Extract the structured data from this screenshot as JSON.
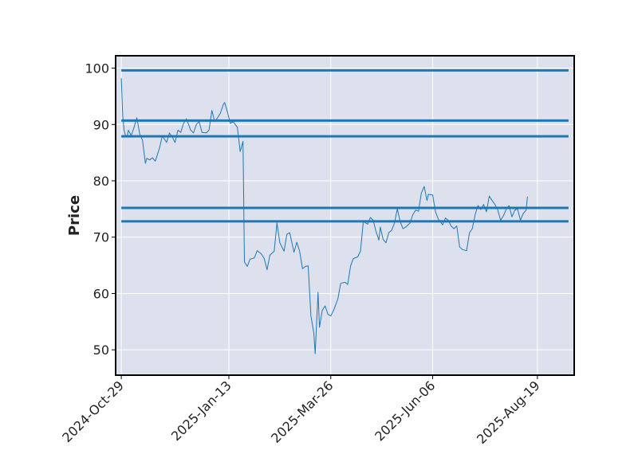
{
  "chart_data": {
    "type": "line",
    "title": "",
    "xlabel": "",
    "ylabel": "Price",
    "ylim": [
      45.5,
      102.2
    ],
    "xlim": [
      "2024-10-25",
      "2025-09-14"
    ],
    "grid": true,
    "y_ticks": [
      50,
      60,
      70,
      80,
      90,
      100
    ],
    "x_ticks": [
      "2024-10-29",
      "2025-01-13",
      "2025-03-26",
      "2025-06-06",
      "2025-08-19"
    ],
    "x_tick_labels": [
      "2024-Oct-29",
      "2025-Jan-13",
      "2025-Mar-26",
      "2025-Jun-06",
      "2025-Aug-19"
    ],
    "colors": {
      "background": "#dce1ed",
      "line": "#1f77b4",
      "hline": "#1f77b4",
      "grid": "#ffffff"
    },
    "hlines": {
      "values": [
        99.6,
        90.7,
        87.9,
        75.2,
        72.8
      ],
      "xmin": "2024-10-29",
      "xmax": "2025-09-10"
    },
    "series": [
      {
        "points": [
          [
            "2024-10-29",
            98.2
          ],
          [
            "2024-10-30",
            91.5
          ],
          [
            "2024-10-31",
            89.0
          ],
          [
            "2024-11-01",
            88.0
          ],
          [
            "2024-11-02",
            87.8
          ],
          [
            "2024-11-03",
            89.0
          ],
          [
            "2024-11-05",
            88.0
          ],
          [
            "2024-11-07",
            89.5
          ],
          [
            "2024-11-09",
            91.2
          ],
          [
            "2024-11-11",
            88.3
          ],
          [
            "2024-11-13",
            87.2
          ],
          [
            "2024-11-15",
            83.1
          ],
          [
            "2024-11-16",
            84.0
          ],
          [
            "2024-11-18",
            83.7
          ],
          [
            "2024-11-20",
            84.1
          ],
          [
            "2024-11-22",
            83.5
          ],
          [
            "2024-11-25",
            85.8
          ],
          [
            "2024-11-27",
            88.0
          ],
          [
            "2024-11-30",
            86.8
          ],
          [
            "2024-12-02",
            88.5
          ],
          [
            "2024-12-04",
            87.8
          ],
          [
            "2024-12-06",
            86.8
          ],
          [
            "2024-12-08",
            89.0
          ],
          [
            "2024-12-10",
            88.6
          ],
          [
            "2024-12-12",
            90.2
          ],
          [
            "2024-12-14",
            91.0
          ],
          [
            "2024-12-17",
            89.0
          ],
          [
            "2024-12-19",
            88.5
          ],
          [
            "2024-12-21",
            90.0
          ],
          [
            "2024-12-23",
            90.5
          ],
          [
            "2024-12-25",
            88.6
          ],
          [
            "2024-12-28",
            88.5
          ],
          [
            "2024-12-30",
            89.0
          ],
          [
            "2025-01-01",
            92.5
          ],
          [
            "2025-01-03",
            90.5
          ],
          [
            "2025-01-05",
            91.2
          ],
          [
            "2025-01-07",
            92.0
          ],
          [
            "2025-01-09",
            93.5
          ],
          [
            "2025-01-10",
            93.9
          ],
          [
            "2025-01-12",
            92.2
          ],
          [
            "2025-01-14",
            90.2
          ],
          [
            "2025-01-16",
            90.5
          ],
          [
            "2025-01-19",
            89.5
          ],
          [
            "2025-01-21",
            85.2
          ],
          [
            "2025-01-23",
            87.0
          ],
          [
            "2025-01-24",
            65.6
          ],
          [
            "2025-01-26",
            64.8
          ],
          [
            "2025-01-28",
            66.1
          ],
          [
            "2025-01-31",
            66.3
          ],
          [
            "2025-02-02",
            67.6
          ],
          [
            "2025-02-05",
            67.0
          ],
          [
            "2025-02-07",
            66.2
          ],
          [
            "2025-02-09",
            64.2
          ],
          [
            "2025-02-11",
            66.8
          ],
          [
            "2025-02-14",
            67.5
          ],
          [
            "2025-02-16",
            72.5
          ],
          [
            "2025-02-18",
            69.0
          ],
          [
            "2025-02-21",
            67.5
          ],
          [
            "2025-02-23",
            70.5
          ],
          [
            "2025-02-25",
            70.8
          ],
          [
            "2025-02-28",
            67.3
          ],
          [
            "2025-03-02",
            69.1
          ],
          [
            "2025-03-04",
            67.5
          ],
          [
            "2025-03-06",
            64.4
          ],
          [
            "2025-03-08",
            64.8
          ],
          [
            "2025-03-10",
            64.9
          ],
          [
            "2025-03-12",
            56.0
          ],
          [
            "2025-03-14",
            53.0
          ],
          [
            "2025-03-15",
            49.3
          ],
          [
            "2025-03-17",
            60.2
          ],
          [
            "2025-03-18",
            54.0
          ],
          [
            "2025-03-20",
            57.0
          ],
          [
            "2025-03-22",
            57.8
          ],
          [
            "2025-03-24",
            56.3
          ],
          [
            "2025-03-26",
            56.0
          ],
          [
            "2025-03-28",
            57.0
          ],
          [
            "2025-03-31",
            59.0
          ],
          [
            "2025-04-02",
            61.8
          ],
          [
            "2025-04-05",
            62.0
          ],
          [
            "2025-04-07",
            61.6
          ],
          [
            "2025-04-09",
            64.9
          ],
          [
            "2025-04-11",
            66.2
          ],
          [
            "2025-04-14",
            66.5
          ],
          [
            "2025-04-16",
            67.5
          ],
          [
            "2025-04-18",
            72.8
          ],
          [
            "2025-04-21",
            72.3
          ],
          [
            "2025-04-23",
            73.5
          ],
          [
            "2025-04-25",
            73.0
          ],
          [
            "2025-04-27",
            71.0
          ],
          [
            "2025-04-29",
            69.5
          ],
          [
            "2025-04-30",
            71.8
          ],
          [
            "2025-05-02",
            69.6
          ],
          [
            "2025-05-04",
            69.0
          ],
          [
            "2025-05-06",
            70.8
          ],
          [
            "2025-05-08",
            71.2
          ],
          [
            "2025-05-10",
            72.5
          ],
          [
            "2025-05-12",
            75.0
          ],
          [
            "2025-05-14",
            72.8
          ],
          [
            "2025-05-16",
            71.5
          ],
          [
            "2025-05-18",
            71.8
          ],
          [
            "2025-05-21",
            72.5
          ],
          [
            "2025-05-23",
            74.0
          ],
          [
            "2025-05-25",
            74.8
          ],
          [
            "2025-05-27",
            74.6
          ],
          [
            "2025-05-29",
            77.8
          ],
          [
            "2025-05-31",
            79.0
          ],
          [
            "2025-06-02",
            76.5
          ],
          [
            "2025-06-03",
            77.6
          ],
          [
            "2025-06-06",
            77.5
          ],
          [
            "2025-06-08",
            74.5
          ],
          [
            "2025-06-10",
            73.2
          ],
          [
            "2025-06-13",
            72.2
          ],
          [
            "2025-06-15",
            73.4
          ],
          [
            "2025-06-17",
            73.0
          ],
          [
            "2025-06-19",
            72.0
          ],
          [
            "2025-06-21",
            71.5
          ],
          [
            "2025-06-23",
            72.0
          ],
          [
            "2025-06-25",
            68.3
          ],
          [
            "2025-06-27",
            67.8
          ],
          [
            "2025-06-30",
            67.6
          ],
          [
            "2025-07-02",
            70.8
          ],
          [
            "2025-07-04",
            71.5
          ],
          [
            "2025-07-06",
            74.0
          ],
          [
            "2025-07-08",
            75.6
          ],
          [
            "2025-07-10",
            74.9
          ],
          [
            "2025-07-12",
            75.8
          ],
          [
            "2025-07-14",
            74.5
          ],
          [
            "2025-07-16",
            77.3
          ],
          [
            "2025-07-18",
            76.5
          ],
          [
            "2025-07-20",
            75.8
          ],
          [
            "2025-07-22",
            74.8
          ],
          [
            "2025-07-24",
            73.0
          ],
          [
            "2025-07-26",
            73.8
          ],
          [
            "2025-07-28",
            75.0
          ],
          [
            "2025-07-30",
            75.6
          ],
          [
            "2025-08-01",
            73.6
          ],
          [
            "2025-08-03",
            74.8
          ],
          [
            "2025-08-05",
            75.0
          ],
          [
            "2025-08-07",
            73.0
          ],
          [
            "2025-08-09",
            74.2
          ],
          [
            "2025-08-11",
            74.8
          ],
          [
            "2025-08-12",
            77.2
          ]
        ]
      }
    ]
  }
}
